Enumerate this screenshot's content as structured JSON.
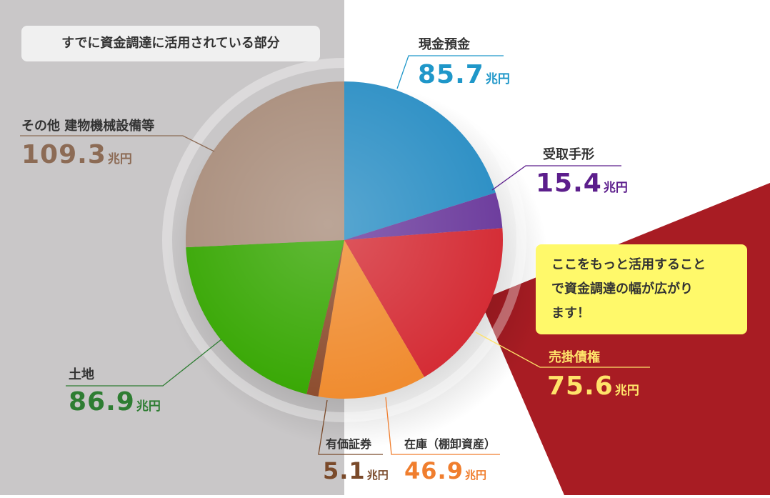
{
  "chart_data": {
    "type": "pie",
    "unit": "兆円",
    "slices": [
      {
        "name": "現金預金",
        "value": 85.7,
        "value_label": "85.7",
        "color": "#2a8ec4"
      },
      {
        "name": "受取手形",
        "value": 15.4,
        "value_label": "15.4",
        "color": "#6b3a9c"
      },
      {
        "name": "売掛債権",
        "value": 75.6,
        "value_label": "75.6",
        "color": "#d42a33"
      },
      {
        "name": "在庫（棚卸資産）",
        "value": 46.9,
        "value_label": "46.9",
        "color": "#f08a2c"
      },
      {
        "name": "有価証券",
        "value": 5.1,
        "value_label": "5.1",
        "color": "#8b4a2b"
      },
      {
        "name": "土地",
        "value": 86.9,
        "value_label": "86.9",
        "color": "#35a600"
      },
      {
        "name": "その他 建物機械設備等",
        "value": 109.3,
        "value_label": "109.3",
        "color": "#a88c7a"
      }
    ]
  },
  "note": "すでに資金調達に活用されている部分",
  "callout": [
    "ここをもっと活用すること",
    "で資金調達の幅が広がり",
    "ます！"
  ],
  "colors": {
    "gray_background": "#c9c7c8",
    "highlight_wedge": "#a81c23",
    "callout_background": "#fff96a",
    "label_cash": "#1f97c9",
    "label_notes": "#5c1e8c",
    "label_receivables_name": "#ffe36a",
    "label_receivables_value": "#ffe36a",
    "label_inventory": "#f07e2e",
    "label_securities": "#7a4a2a",
    "label_land": "#2e7d32",
    "label_other": "#8c6b55"
  }
}
